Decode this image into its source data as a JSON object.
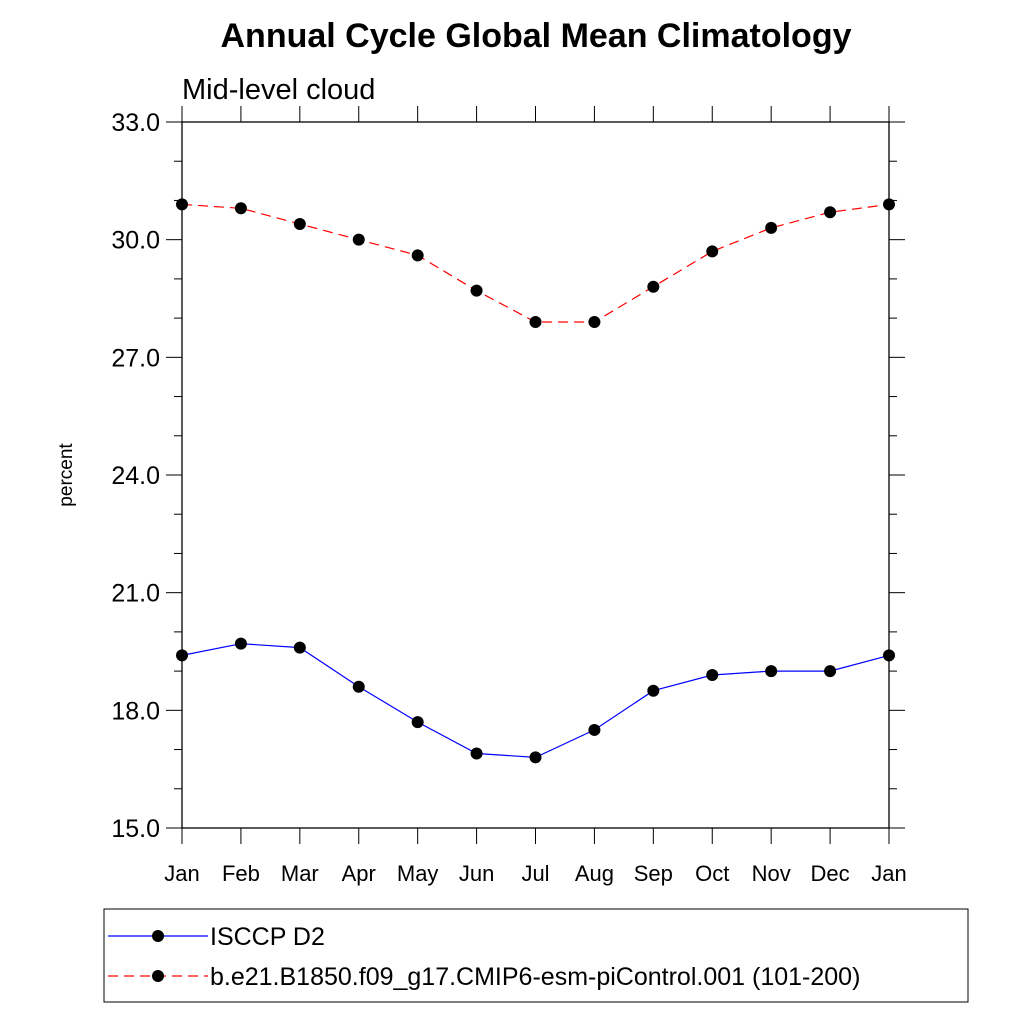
{
  "chart_data": {
    "type": "line",
    "title": "Annual Cycle Global Mean Climatology",
    "subtitle": "Mid-level cloud",
    "xlabel": "",
    "ylabel": "percent",
    "categories": [
      "Jan",
      "Feb",
      "Mar",
      "Apr",
      "May",
      "Jun",
      "Jul",
      "Aug",
      "Sep",
      "Oct",
      "Nov",
      "Dec",
      "Jan"
    ],
    "ylim": [
      15.0,
      33.0
    ],
    "yticks": [
      "15.0",
      "18.0",
      "21.0",
      "24.0",
      "27.0",
      "30.0",
      "33.0"
    ],
    "series": [
      {
        "name": "ISCCP D2",
        "color": "#0000ff",
        "style": "solid",
        "marker": "circle",
        "values": [
          19.4,
          19.7,
          19.6,
          18.6,
          17.7,
          16.9,
          16.8,
          17.5,
          18.5,
          18.9,
          19.0,
          19.0,
          19.4
        ]
      },
      {
        "name": "b.e21.B1850.f09_g17.CMIP6-esm-piControl.001 (101-200)",
        "color": "#ff0000",
        "style": "dashed",
        "marker": "circle",
        "values": [
          30.9,
          30.8,
          30.4,
          30.0,
          29.6,
          28.7,
          27.9,
          27.9,
          28.8,
          29.7,
          30.3,
          30.7,
          30.9
        ]
      }
    ],
    "legend_position": "bottom"
  }
}
